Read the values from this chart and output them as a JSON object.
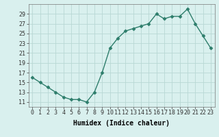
{
  "x": [
    0,
    1,
    2,
    3,
    4,
    5,
    6,
    7,
    8,
    9,
    10,
    11,
    12,
    13,
    14,
    15,
    16,
    17,
    18,
    19,
    20,
    21,
    22,
    23
  ],
  "y": [
    16,
    15,
    14,
    13,
    12,
    11.5,
    11.5,
    11,
    13,
    17,
    22,
    24,
    25.5,
    26,
    26.5,
    27,
    29,
    28,
    28.5,
    28.5,
    30,
    27,
    24.5,
    22
  ],
  "line_color": "#2d7d6b",
  "marker": "D",
  "marker_size": 2.5,
  "bg_color": "#d9f0ee",
  "grid_color": "#b8d8d4",
  "xlabel": "Humidex (Indice chaleur)",
  "xlim": [
    -0.5,
    23.5
  ],
  "ylim": [
    10,
    31
  ],
  "yticks": [
    11,
    13,
    15,
    17,
    19,
    21,
    23,
    25,
    27,
    29
  ],
  "xtick_labels": [
    "0",
    "1",
    "2",
    "3",
    "4",
    "5",
    "6",
    "7",
    "8",
    "9",
    "10",
    "11",
    "12",
    "13",
    "14",
    "15",
    "16",
    "17",
    "18",
    "19",
    "20",
    "21",
    "22",
    "23"
  ],
  "xlabel_fontsize": 7,
  "tick_fontsize": 6,
  "linewidth": 1.0
}
